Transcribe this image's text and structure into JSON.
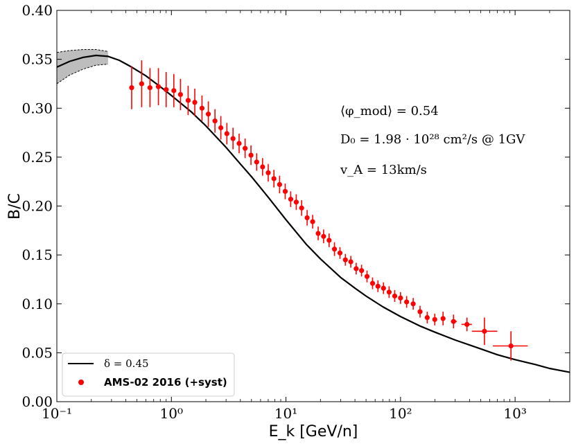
{
  "chart_data": {
    "type": "scatter",
    "title": "",
    "xlabel": "E_k [GeV/n]",
    "ylabel": "B/C",
    "xscale": "log",
    "xlim": [
      0.1,
      3000
    ],
    "ylim": [
      0.0,
      0.4
    ],
    "grid": false,
    "legend_position": "bottom-left",
    "x_tick_labels": [
      "10⁻¹",
      "10⁰",
      "10¹",
      "10²",
      "10³"
    ],
    "y_tick_labels": [
      "0.00",
      "0.05",
      "0.10",
      "0.15",
      "0.20",
      "0.25",
      "0.30",
      "0.35",
      "0.40"
    ],
    "annotations": [
      "⟨φ_mod⟩ = 0.54",
      "D₀ = 1.98 · 10²⁸ cm²/s @ 1GV",
      "v_A = 13km/s"
    ],
    "series": [
      {
        "name": "δ = 0.45",
        "kind": "line",
        "color": "#000000",
        "x": [
          0.1,
          0.13,
          0.17,
          0.22,
          0.28,
          0.35,
          0.45,
          0.6,
          0.8,
          1.0,
          1.5,
          2,
          3,
          4,
          5,
          7,
          10,
          15,
          20,
          30,
          40,
          50,
          70,
          100,
          150,
          200,
          300,
          500,
          700,
          1000,
          1500,
          2000,
          3000
        ],
        "values": [
          0.342,
          0.348,
          0.352,
          0.354,
          0.353,
          0.349,
          0.342,
          0.333,
          0.322,
          0.313,
          0.296,
          0.282,
          0.26,
          0.243,
          0.23,
          0.209,
          0.186,
          0.161,
          0.146,
          0.127,
          0.116,
          0.108,
          0.097,
          0.087,
          0.077,
          0.071,
          0.063,
          0.054,
          0.048,
          0.043,
          0.038,
          0.034,
          0.03
        ],
        "band_upper": [
          0.357,
          0.359,
          0.36,
          0.36,
          0.358
        ],
        "band_lower": [
          0.325,
          0.334,
          0.34,
          0.344,
          0.345
        ],
        "band_x": [
          0.1,
          0.13,
          0.17,
          0.22,
          0.28
        ],
        "band_color": "#bdbdbd"
      },
      {
        "name": "AMS-02 2016 (+syst)",
        "kind": "points",
        "color": "#ff0000",
        "x": [
          0.45,
          0.55,
          0.65,
          0.77,
          0.9,
          1.05,
          1.2,
          1.4,
          1.6,
          1.85,
          2.1,
          2.4,
          2.7,
          3.05,
          3.45,
          3.9,
          4.4,
          4.95,
          5.55,
          6.25,
          7.0,
          7.85,
          8.8,
          9.85,
          11.0,
          12.3,
          13.7,
          15.3,
          17.1,
          19.1,
          21.3,
          23.8,
          26.5,
          29.6,
          33.0,
          36.8,
          41.0,
          45.7,
          51.0,
          57.0,
          63.5,
          71.0,
          79.5,
          89.0,
          100.0,
          113.0,
          129.0,
          148.0,
          171.0,
          199.0,
          235.0,
          290.0,
          380.0,
          540.0,
          920.0
        ],
        "values": [
          0.321,
          0.325,
          0.321,
          0.322,
          0.319,
          0.318,
          0.314,
          0.308,
          0.306,
          0.3,
          0.294,
          0.287,
          0.28,
          0.274,
          0.269,
          0.264,
          0.259,
          0.252,
          0.245,
          0.24,
          0.234,
          0.228,
          0.222,
          0.215,
          0.207,
          0.204,
          0.198,
          0.188,
          0.184,
          0.172,
          0.169,
          0.165,
          0.156,
          0.152,
          0.145,
          0.143,
          0.136,
          0.134,
          0.128,
          0.121,
          0.118,
          0.116,
          0.112,
          0.108,
          0.106,
          0.102,
          0.1,
          0.092,
          0.086,
          0.084,
          0.085,
          0.082,
          0.079,
          0.072,
          0.057
        ],
        "yerr": [
          0.022,
          0.024,
          0.02,
          0.019,
          0.018,
          0.017,
          0.016,
          0.015,
          0.014,
          0.013,
          0.013,
          0.012,
          0.012,
          0.011,
          0.011,
          0.01,
          0.01,
          0.01,
          0.009,
          0.009,
          0.009,
          0.009,
          0.009,
          0.008,
          0.008,
          0.008,
          0.008,
          0.008,
          0.007,
          0.007,
          0.007,
          0.007,
          0.007,
          0.006,
          0.006,
          0.006,
          0.006,
          0.006,
          0.006,
          0.006,
          0.006,
          0.006,
          0.006,
          0.006,
          0.006,
          0.006,
          0.006,
          0.006,
          0.006,
          0.006,
          0.007,
          0.007,
          0.007,
          0.014,
          0.015
        ],
        "xerr_low": [
          0,
          0,
          0,
          0,
          0,
          0,
          0,
          0,
          0,
          0,
          0,
          0,
          0,
          0,
          0,
          0,
          0,
          0,
          0,
          0,
          0,
          0,
          0,
          0,
          0,
          0,
          0,
          0,
          0,
          0,
          0,
          0,
          0,
          0,
          0,
          0,
          0,
          0,
          0,
          0,
          0,
          0,
          0,
          0,
          0,
          0,
          0,
          0,
          0,
          0,
          0,
          15,
          40,
          120,
          280
        ],
        "xerr_high": [
          0,
          0,
          0,
          0,
          0,
          0,
          0,
          0,
          0,
          0,
          0,
          0,
          0,
          0,
          0,
          0,
          0,
          0,
          0,
          0,
          0,
          0,
          0,
          0,
          0,
          0,
          0,
          0,
          0,
          0,
          0,
          0,
          0,
          0,
          0,
          0,
          0,
          0,
          0,
          0,
          0,
          0,
          0,
          0,
          0,
          0,
          0,
          0,
          0,
          0,
          0,
          20,
          40,
          160,
          370
        ]
      }
    ]
  }
}
